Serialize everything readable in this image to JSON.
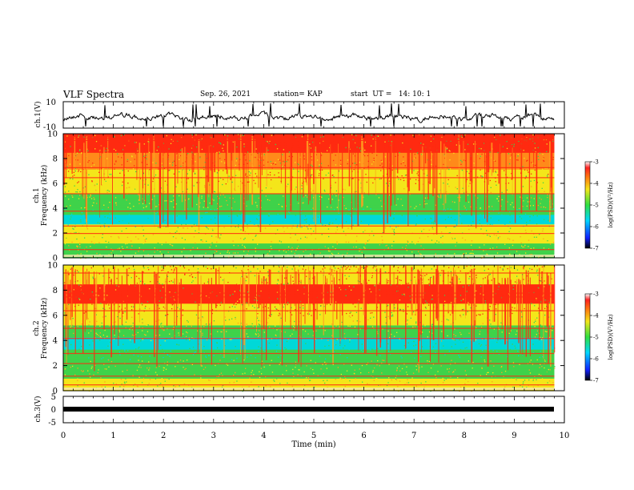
{
  "header": {
    "title": "VLF Spectra",
    "date": "Sep. 26, 2021",
    "station": "station= KAP",
    "start": "start  UT =   14: 10: 1"
  },
  "chart_data": [
    {
      "type": "line",
      "panel": "ch1-waveform",
      "ylabel": "ch.1(V)",
      "ylim": [
        -10,
        10
      ],
      "yticks": [
        "10",
        "-10"
      ],
      "xlim": [
        0,
        10
      ],
      "approx_range": [
        -10,
        10
      ]
    },
    {
      "type": "heatmap",
      "panel": "ch1-spectrogram",
      "ylabel": "ch.1",
      "ylabel2": "Frequency  (kHz)",
      "ylim": [
        0,
        10
      ],
      "yticks": [
        "0",
        "2",
        "4",
        "6",
        "8",
        "10"
      ],
      "xlim": [
        0,
        9.8
      ],
      "colorbar": {
        "label": "log(PSD)(V²/Hz)",
        "range": [
          -7,
          -3
        ],
        "ticks": [
          "-3",
          "-4",
          "-5",
          "-6",
          "-7"
        ]
      }
    },
    {
      "type": "heatmap",
      "panel": "ch2-spectrogram",
      "ylabel": "ch.2",
      "ylabel2": "Frequency  (kHz)",
      "ylim": [
        0,
        10
      ],
      "yticks": [
        "0",
        "2",
        "4",
        "6",
        "8",
        "10"
      ],
      "xlim": [
        0,
        9.8
      ],
      "colorbar": {
        "label": "log(PSD)(V²/Hz)",
        "range": [
          -7,
          -3
        ],
        "ticks": [
          "-3",
          "-4",
          "-5",
          "-6",
          "-7"
        ]
      }
    },
    {
      "type": "line",
      "panel": "ch3-waveform",
      "ylabel": "ch.3(V)",
      "ylim": [
        -5,
        5
      ],
      "yticks": [
        "5",
        "0",
        "-5"
      ],
      "approx_value": -1
    }
  ],
  "xaxis": {
    "label": "Time  (min)",
    "ticks": [
      "0",
      "1",
      "2",
      "3",
      "4",
      "5",
      "6",
      "7",
      "8",
      "9",
      "10"
    ],
    "range": [
      0,
      10
    ]
  },
  "colors": {
    "red": "#ff2a10",
    "orange": "#ffa020",
    "yellow": "#f4e61a",
    "green": "#3fd24a",
    "cyan": "#00d8d8",
    "blue": "#1848ff"
  }
}
